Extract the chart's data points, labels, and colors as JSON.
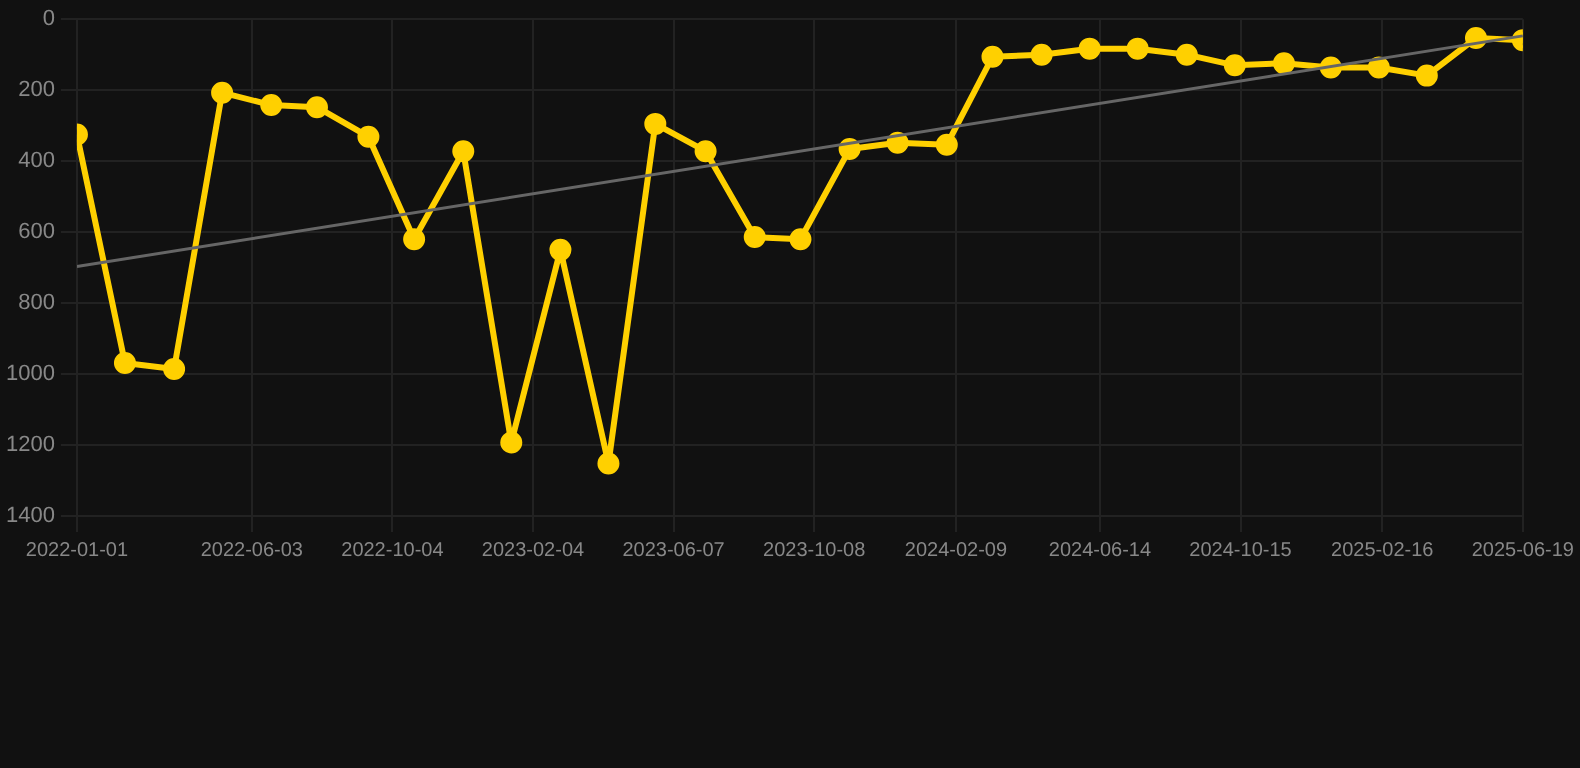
{
  "chart_data": {
    "type": "line",
    "x": [
      "2022-01-01",
      "2022-02-12",
      "2022-03-27",
      "2022-05-08",
      "2022-06-20",
      "2022-07-30",
      "2022-09-13",
      "2022-10-23",
      "2022-12-05",
      "2023-01-16",
      "2023-02-28",
      "2023-04-11",
      "2023-05-22",
      "2023-07-05",
      "2023-08-17",
      "2023-09-26",
      "2023-11-08",
      "2023-12-20",
      "2024-02-01",
      "2024-03-12",
      "2024-04-24",
      "2024-06-05",
      "2024-07-17",
      "2024-08-29",
      "2024-10-10",
      "2024-11-22",
      "2025-01-02",
      "2025-02-13",
      "2025-03-27",
      "2025-05-09",
      "2025-06-19"
    ],
    "series": [
      {
        "color": "#ffd000",
        "values": [
          325,
          969,
          986,
          207,
          242,
          248,
          331,
          620,
          372,
          1193,
          650,
          1252,
          295,
          372,
          614,
          620,
          366,
          348,
          354,
          106,
          100,
          83,
          83,
          100,
          130,
          124,
          136,
          136,
          159,
          53,
          59
        ]
      },
      {
        "type": "line",
        "color": "#666666",
        "marker": "none",
        "x": [
          "2022-01-01",
          "2025-06-19"
        ],
        "values": [
          697,
          47
        ]
      }
    ],
    "xlim": [
      "2022-01-01",
      "2025-06-19"
    ],
    "xticks": [
      "2022-01-01",
      "2022-06-03",
      "2022-10-04",
      "2023-02-04",
      "2023-06-07",
      "2023-10-08",
      "2024-02-09",
      "2024-06-14",
      "2024-10-15",
      "2025-02-16",
      "2025-06-19"
    ],
    "ylim": [
      1400,
      0
    ],
    "yticks": [
      0,
      200,
      400,
      600,
      800,
      1000,
      1200,
      1400
    ],
    "grid": true,
    "marker": "circle",
    "line_style": "solid",
    "legend": false
  }
}
